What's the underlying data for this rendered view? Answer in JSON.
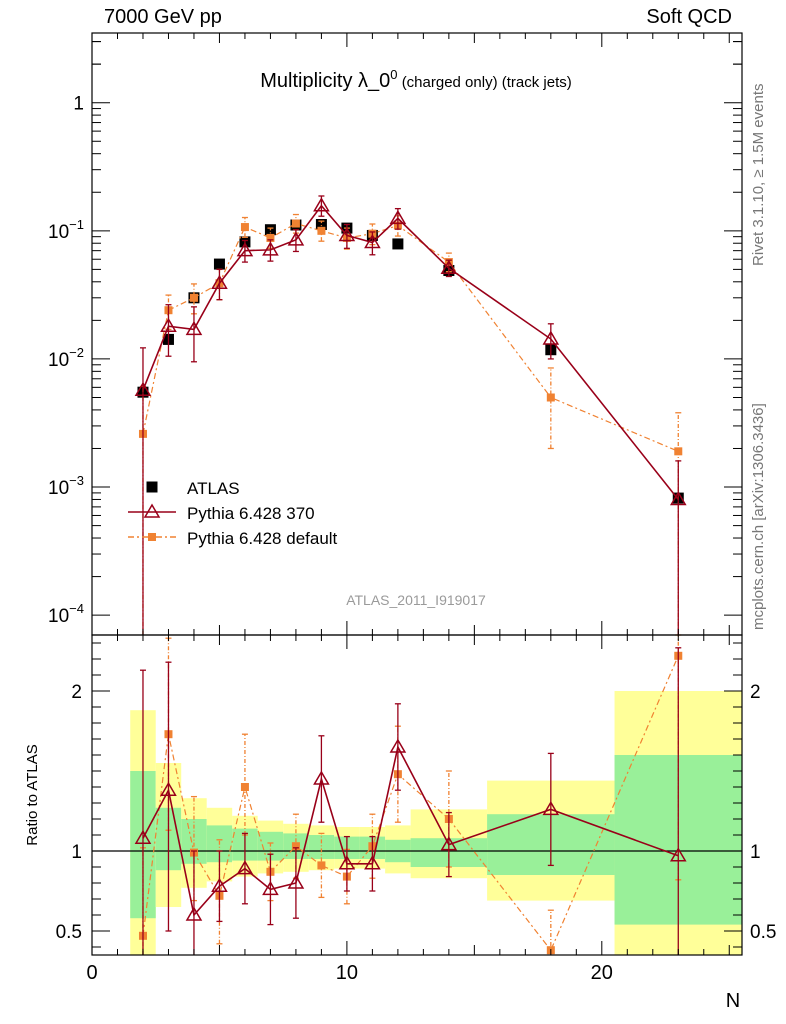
{
  "header": {
    "left": "7000 GeV pp",
    "right": "Soft QCD"
  },
  "side_labels": {
    "rivet": "Rivet 3.1.10, ≥ 1.5M events",
    "mcplots": "mcplots.cern.ch [arXiv:1306.3436]"
  },
  "chart_data": [
    {
      "type": "scatter",
      "panel": "main",
      "title": "Multiplicity λ_0",
      "title_sup": "0",
      "title_small": "(charged only) (track jets)",
      "watermark": "ATLAS_2011_I919017",
      "yscale": "log",
      "xlim": [
        0,
        25.5
      ],
      "ylim": [
        7e-05,
        3.5
      ],
      "xticks": [
        0,
        10,
        20
      ],
      "yticks": [
        {
          "v": 1,
          "base": "1",
          "exp": ""
        },
        {
          "v": 0.1,
          "base": "10",
          "exp": "−1"
        },
        {
          "v": 0.01,
          "base": "10",
          "exp": "−2"
        },
        {
          "v": 0.001,
          "base": "10",
          "exp": "−3"
        },
        {
          "v": 0.0001,
          "base": "10",
          "exp": "−4"
        }
      ],
      "legend_position": "middle-left",
      "series": [
        {
          "name": "ATLAS",
          "style": "data",
          "color": "#000000",
          "x": [
            2,
            3,
            4,
            5,
            6,
            7,
            8,
            9,
            10,
            11,
            12,
            14,
            18,
            23
          ],
          "y": [
            0.0055,
            0.0142,
            0.03,
            0.055,
            0.082,
            0.102,
            0.111,
            0.112,
            0.105,
            0.092,
            0.079,
            0.049,
            0.0118,
            0.00082
          ]
        },
        {
          "name": "Pythia 6.428 370",
          "style": "triangle",
          "color": "#990019",
          "x": [
            2,
            3,
            4,
            5,
            6,
            7,
            8,
            9,
            10,
            11,
            12,
            14,
            18,
            23
          ],
          "y": [
            0.0057,
            0.018,
            0.017,
            0.039,
            0.07,
            0.071,
            0.085,
            0.157,
            0.092,
            0.081,
            0.125,
            0.051,
            0.0143,
            0.0008
          ],
          "err_low": [
            0.0057,
            0.0075,
            0.0075,
            0.01,
            0.013,
            0.013,
            0.016,
            0.027,
            0.019,
            0.016,
            0.022,
            0.007,
            0.0043,
            0.0008
          ],
          "err_high": [
            0.0065,
            0.0085,
            0.0085,
            0.011,
            0.014,
            0.014,
            0.017,
            0.03,
            0.02,
            0.017,
            0.024,
            0.008,
            0.0045,
            0.0008
          ]
        },
        {
          "name": "Pythia 6.428 default",
          "style": "square-dashdot",
          "color": "#f08232",
          "x": [
            2,
            3,
            4,
            5,
            6,
            7,
            8,
            9,
            10,
            11,
            12,
            14,
            18,
            23
          ],
          "y": [
            0.0026,
            0.024,
            0.03,
            0.039,
            0.107,
            0.088,
            0.114,
            0.1,
            0.088,
            0.095,
            0.11,
            0.057,
            0.005,
            0.0019
          ],
          "err_low": [
            0.0026,
            0.007,
            0.0075,
            0.01,
            0.018,
            0.015,
            0.018,
            0.017,
            0.016,
            0.017,
            0.019,
            0.009,
            0.003,
            0.0019
          ],
          "err_high": [
            0.0035,
            0.0075,
            0.0085,
            0.011,
            0.02,
            0.017,
            0.02,
            0.019,
            0.017,
            0.018,
            0.021,
            0.01,
            0.0035,
            0.0019
          ]
        }
      ]
    },
    {
      "type": "scatter",
      "panel": "ratio",
      "ylabel": "Ratio to ATLAS",
      "xlabel": "N",
      "xlim": [
        0,
        25.5
      ],
      "ylim": [
        0.35,
        2.35
      ],
      "xticks": [
        0,
        10,
        20
      ],
      "yticks": [
        0.5,
        1,
        2
      ],
      "reference_line": 1,
      "bands": [
        {
          "x0": 1.5,
          "x1": 2.5,
          "stat_lo": 0.58,
          "stat_hi": 1.5,
          "tot_lo": 0.35,
          "tot_hi": 1.88
        },
        {
          "x0": 2.5,
          "x1": 3.5,
          "stat_lo": 0.88,
          "stat_hi": 1.27,
          "tot_lo": 0.65,
          "tot_hi": 1.55
        },
        {
          "x0": 3.5,
          "x1": 4.5,
          "stat_lo": 0.92,
          "stat_hi": 1.2,
          "tot_lo": 0.77,
          "tot_hi": 1.33
        },
        {
          "x0": 4.5,
          "x1": 5.5,
          "stat_lo": 0.93,
          "stat_hi": 1.16,
          "tot_lo": 0.81,
          "tot_hi": 1.27
        },
        {
          "x0": 5.5,
          "x1": 6.5,
          "stat_lo": 0.94,
          "stat_hi": 1.14,
          "tot_lo": 0.84,
          "tot_hi": 1.22
        },
        {
          "x0": 6.5,
          "x1": 7.5,
          "stat_lo": 0.94,
          "stat_hi": 1.12,
          "tot_lo": 0.86,
          "tot_hi": 1.19
        },
        {
          "x0": 7.5,
          "x1": 8.5,
          "stat_lo": 0.95,
          "stat_hi": 1.11,
          "tot_lo": 0.87,
          "tot_hi": 1.17
        },
        {
          "x0": 8.5,
          "x1": 9.5,
          "stat_lo": 0.95,
          "stat_hi": 1.1,
          "tot_lo": 0.88,
          "tot_hi": 1.16
        },
        {
          "x0": 9.5,
          "x1": 10.5,
          "stat_lo": 0.95,
          "stat_hi": 1.09,
          "tot_lo": 0.89,
          "tot_hi": 1.15
        },
        {
          "x0": 10.5,
          "x1": 11.5,
          "stat_lo": 0.95,
          "stat_hi": 1.09,
          "tot_lo": 0.89,
          "tot_hi": 1.15
        },
        {
          "x0": 11.5,
          "x1": 12.5,
          "stat_lo": 0.93,
          "stat_hi": 1.07,
          "tot_lo": 0.86,
          "tot_hi": 1.16
        },
        {
          "x0": 12.5,
          "x1": 15.5,
          "stat_lo": 0.9,
          "stat_hi": 1.08,
          "tot_lo": 0.83,
          "tot_hi": 1.26
        },
        {
          "x0": 15.5,
          "x1": 20.5,
          "stat_lo": 0.85,
          "stat_hi": 1.23,
          "tot_lo": 0.69,
          "tot_hi": 1.44
        },
        {
          "x0": 20.5,
          "x1": 25.5,
          "stat_lo": 0.54,
          "stat_hi": 1.6,
          "tot_lo": 0.35,
          "tot_hi": 2.0
        }
      ],
      "series": [
        {
          "name": "Pythia 6.428 370",
          "style": "triangle",
          "color": "#990019",
          "x": [
            2,
            3,
            4,
            5,
            6,
            7,
            8,
            9,
            10,
            11,
            12,
            14,
            18,
            23
          ],
          "y": [
            1.08,
            1.38,
            0.6,
            0.78,
            0.89,
            0.76,
            0.8,
            1.45,
            0.92,
            0.92,
            1.65,
            1.04,
            1.26,
            0.97
          ],
          "err_low": [
            1.08,
            0.88,
            0.4,
            0.22,
            0.22,
            0.22,
            0.22,
            0.27,
            0.17,
            0.17,
            0.27,
            0.2,
            0.35,
            0.97
          ],
          "err_high": [
            1.05,
            0.8,
            0.4,
            0.22,
            0.22,
            0.22,
            0.22,
            0.27,
            0.17,
            0.17,
            0.27,
            0.2,
            0.35,
            1.3
          ]
        },
        {
          "name": "Pythia 6.428 default",
          "style": "square-dashdot",
          "color": "#f08232",
          "x": [
            2,
            3,
            4,
            5,
            6,
            7,
            8,
            9,
            10,
            11,
            12,
            14,
            18,
            23
          ],
          "y": [
            0.47,
            1.73,
            0.99,
            0.72,
            1.4,
            0.87,
            1.03,
            0.91,
            0.84,
            1.03,
            1.48,
            1.2,
            0.38,
            2.22
          ],
          "err_low": [
            0.47,
            0.6,
            0.3,
            0.3,
            0.3,
            0.18,
            0.2,
            0.2,
            0.17,
            0.2,
            0.3,
            0.3,
            0.38,
            1.4
          ],
          "err_high": [
            0.55,
            0.6,
            0.35,
            0.35,
            0.33,
            0.18,
            0.2,
            0.2,
            0.17,
            0.2,
            0.3,
            0.3,
            0.25,
            0.3
          ]
        }
      ]
    }
  ]
}
